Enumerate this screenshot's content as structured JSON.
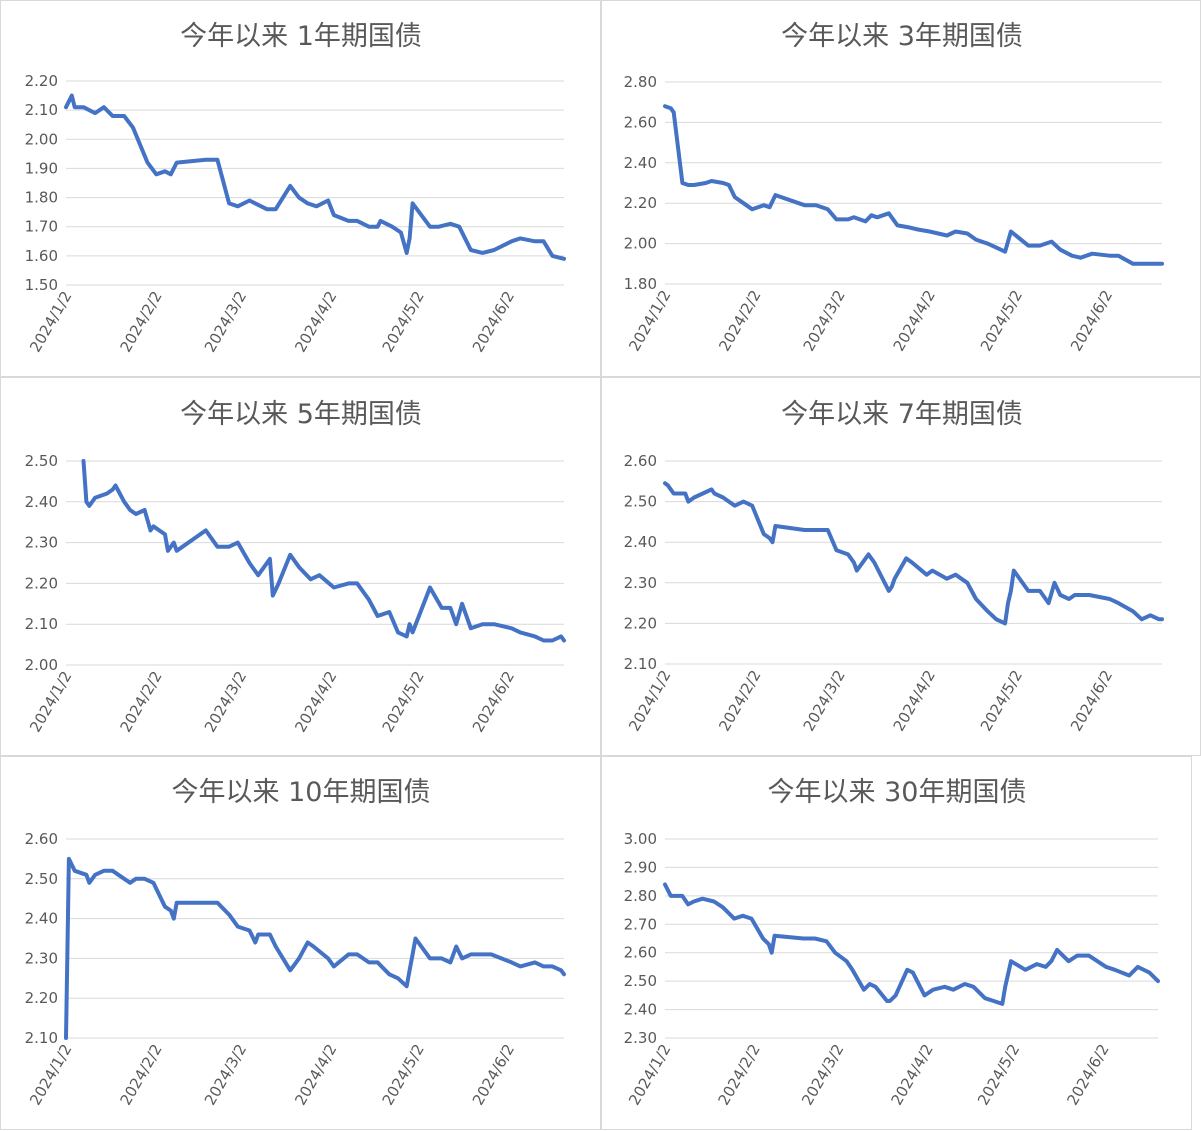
{
  "chart_data": [
    {
      "type": "line",
      "title": "今年以来 1年期国债",
      "x_tick_labels": [
        "2024/1/2",
        "2024/2/2",
        "2024/3/2",
        "2024/4/2",
        "2024/5/2",
        "2024/6/2"
      ],
      "ylim": [
        1.5,
        2.2
      ],
      "y_tick_labels": [
        "2.20",
        "2.10",
        "2.00",
        "1.90",
        "1.80",
        "1.70",
        "1.60",
        "1.50"
      ],
      "grid": true,
      "legend": "none",
      "x": [
        "2024/1/2",
        "2024/1/4",
        "2024/1/5",
        "2024/1/8",
        "2024/1/12",
        "2024/1/15",
        "2024/1/18",
        "2024/1/22",
        "2024/1/25",
        "2024/1/30",
        "2024/2/2",
        "2024/2/5",
        "2024/2/7",
        "2024/2/9",
        "2024/2/19",
        "2024/2/23",
        "2024/2/27",
        "2024/3/1",
        "2024/3/5",
        "2024/3/7",
        "2024/3/11",
        "2024/3/13",
        "2024/3/14",
        "2024/3/19",
        "2024/3/22",
        "2024/3/25",
        "2024/3/28",
        "2024/4/1",
        "2024/4/3",
        "2024/4/8",
        "2024/4/11",
        "2024/4/15",
        "2024/4/18",
        "2024/4/19",
        "2024/4/23",
        "2024/4/26",
        "2024/4/28",
        "2024/4/29",
        "2024/4/30",
        "2024/5/6",
        "2024/5/9",
        "2024/5/13",
        "2024/5/16",
        "2024/5/20",
        "2024/5/24",
        "2024/5/28",
        "2024/6/3",
        "2024/6/6",
        "2024/6/11",
        "2024/6/14",
        "2024/6/17",
        "2024/6/21"
      ],
      "values": [
        2.11,
        2.15,
        2.11,
        2.11,
        2.09,
        2.11,
        2.08,
        2.08,
        2.04,
        1.92,
        1.88,
        1.89,
        1.88,
        1.92,
        1.93,
        1.93,
        1.78,
        1.77,
        1.79,
        1.78,
        1.76,
        1.76,
        1.76,
        1.84,
        1.8,
        1.78,
        1.77,
        1.79,
        1.74,
        1.72,
        1.72,
        1.7,
        1.7,
        1.72,
        1.7,
        1.68,
        1.61,
        1.66,
        1.78,
        1.7,
        1.7,
        1.71,
        1.7,
        1.62,
        1.61,
        1.62,
        1.65,
        1.66,
        1.65,
        1.65,
        1.6,
        1.59
      ]
    },
    {
      "type": "line",
      "title": "今年以来 7年期国债",
      "x_tick_labels": [
        "2024/1/2",
        "2024/2/2",
        "2024/3/2",
        "2024/4/2",
        "2024/5/2",
        "2024/6/2"
      ],
      "ylim": [
        2.1,
        2.6
      ],
      "y_tick_labels": [
        "2.60",
        "2.50",
        "2.40",
        "2.30",
        "2.20",
        "2.10"
      ],
      "grid": true,
      "legend": "none",
      "x": [
        "2024/1/2",
        "2024/1/3",
        "2024/1/5",
        "2024/1/9",
        "2024/1/10",
        "2024/1/12",
        "2024/1/15",
        "2024/1/18",
        "2024/1/19",
        "2024/1/22",
        "2024/1/24",
        "2024/1/26",
        "2024/1/29",
        "2024/2/1",
        "2024/2/5",
        "2024/2/7",
        "2024/2/8",
        "2024/2/9",
        "2024/2/19",
        "2024/2/22",
        "2024/2/27",
        "2024/3/1",
        "2024/3/5",
        "2024/3/7",
        "2024/3/8",
        "2024/3/12",
        "2024/3/14",
        "2024/3/19",
        "2024/3/20",
        "2024/3/21",
        "2024/3/25",
        "2024/3/27",
        "2024/4/1",
        "2024/4/3",
        "2024/4/8",
        "2024/4/11",
        "2024/4/15",
        "2024/4/18",
        "2024/4/22",
        "2024/4/25",
        "2024/4/28",
        "2024/4/29",
        "2024/4/30",
        "2024/5/1",
        "2024/5/6",
        "2024/5/10",
        "2024/5/13",
        "2024/5/15",
        "2024/5/17",
        "2024/5/20",
        "2024/5/22",
        "2024/5/27",
        "2024/6/3",
        "2024/6/6",
        "2024/6/11",
        "2024/6/14",
        "2024/6/17",
        "2024/6/20",
        "2024/6/21"
      ],
      "values": [
        2.545,
        2.54,
        2.52,
        2.52,
        2.5,
        2.51,
        2.52,
        2.53,
        2.52,
        2.51,
        2.5,
        2.49,
        2.5,
        2.49,
        2.42,
        2.41,
        2.4,
        2.44,
        2.43,
        2.43,
        2.43,
        2.38,
        2.37,
        2.35,
        2.33,
        2.37,
        2.35,
        2.28,
        2.29,
        2.31,
        2.36,
        2.35,
        2.32,
        2.33,
        2.31,
        2.32,
        2.3,
        2.26,
        2.23,
        2.21,
        2.2,
        2.25,
        2.28,
        2.33,
        2.28,
        2.28,
        2.25,
        2.3,
        2.27,
        2.26,
        2.27,
        2.27,
        2.26,
        2.25,
        2.23,
        2.21,
        2.22,
        2.21,
        2.21
      ]
    },
    {
      "type": "line",
      "title": "今年以来 3年期国债",
      "x_tick_labels": [
        "2024/1/2",
        "2024/2/2",
        "2024/3/2",
        "2024/4/2",
        "2024/5/2",
        "2024/6/2"
      ],
      "ylim": [
        1.8,
        2.8
      ],
      "y_tick_labels": [
        "2.80",
        "2.60",
        "2.40",
        "2.20",
        "2.00",
        "1.80"
      ],
      "grid": true,
      "legend": "none",
      "x": [
        "2024/1/2",
        "2024/1/4",
        "2024/1/5",
        "2024/1/8",
        "2024/1/10",
        "2024/1/12",
        "2024/1/16",
        "2024/1/18",
        "2024/1/22",
        "2024/1/24",
        "2024/1/26",
        "2024/1/29",
        "2024/2/1",
        "2024/2/5",
        "2024/2/7",
        "2024/2/9",
        "2024/2/19",
        "2024/2/23",
        "2024/2/27",
        "2024/3/1",
        "2024/3/5",
        "2024/3/7",
        "2024/3/11",
        "2024/3/13",
        "2024/3/15",
        "2024/3/19",
        "2024/3/22",
        "2024/3/26",
        "2024/3/29",
        "2024/4/2",
        "2024/4/8",
        "2024/4/11",
        "2024/4/15",
        "2024/4/18",
        "2024/4/22",
        "2024/4/25",
        "2024/4/28",
        "2024/4/30",
        "2024/5/6",
        "2024/5/10",
        "2024/5/14",
        "2024/5/17",
        "2024/5/21",
        "2024/5/24",
        "2024/5/28",
        "2024/6/3",
        "2024/6/6",
        "2024/6/11",
        "2024/6/14",
        "2024/6/17",
        "2024/6/21"
      ],
      "values": [
        2.68,
        2.67,
        2.65,
        2.3,
        2.29,
        2.29,
        2.3,
        2.31,
        2.3,
        2.29,
        2.23,
        2.2,
        2.17,
        2.19,
        2.18,
        2.24,
        2.19,
        2.19,
        2.17,
        2.12,
        2.12,
        2.13,
        2.11,
        2.14,
        2.13,
        2.15,
        2.09,
        2.08,
        2.07,
        2.06,
        2.04,
        2.06,
        2.05,
        2.02,
        2.0,
        1.98,
        1.96,
        2.06,
        1.99,
        1.99,
        2.01,
        1.97,
        1.94,
        1.93,
        1.95,
        1.94,
        1.94,
        1.9,
        1.9,
        1.9,
        1.9
      ]
    },
    {
      "type": "line",
      "title": "今年以来 10年期国债",
      "x_tick_labels": [
        "2024/1/2",
        "2024/2/2",
        "2024/3/2",
        "2024/4/2",
        "2024/5/2",
        "2024/6/2"
      ],
      "ylim": [
        2.1,
        2.6
      ],
      "y_tick_labels": [
        "2.60",
        "2.50",
        "2.40",
        "2.30",
        "2.20",
        "2.10"
      ],
      "grid": true,
      "legend": "none",
      "x": [
        "2024/1/2",
        "2024/1/3",
        "2024/1/5",
        "2024/1/9",
        "2024/1/10",
        "2024/1/12",
        "2024/1/15",
        "2024/1/18",
        "2024/1/22",
        "2024/1/24",
        "2024/1/26",
        "2024/1/29",
        "2024/2/1",
        "2024/2/5",
        "2024/2/7",
        "2024/2/8",
        "2024/2/9",
        "2024/2/19",
        "2024/2/23",
        "2024/2/27",
        "2024/3/1",
        "2024/3/5",
        "2024/3/7",
        "2024/3/8",
        "2024/3/12",
        "2024/3/14",
        "2024/3/19",
        "2024/3/20",
        "2024/3/22",
        "2024/3/25",
        "2024/3/27",
        "2024/4/1",
        "2024/4/3",
        "2024/4/8",
        "2024/4/11",
        "2024/4/15",
        "2024/4/18",
        "2024/4/22",
        "2024/4/25",
        "2024/4/28",
        "2024/4/29",
        "2024/4/30",
        "2024/5/1",
        "2024/5/6",
        "2024/5/10",
        "2024/5/13",
        "2024/5/15",
        "2024/5/17",
        "2024/5/20",
        "2024/5/22",
        "2024/5/27",
        "2024/6/3",
        "2024/6/6",
        "2024/6/11",
        "2024/6/14",
        "2024/6/17",
        "2024/6/20",
        "2024/6/21"
      ],
      "values": [
        2.1,
        2.55,
        2.52,
        2.51,
        2.49,
        2.51,
        2.52,
        2.52,
        2.5,
        2.49,
        2.5,
        2.5,
        2.49,
        2.43,
        2.42,
        2.4,
        2.44,
        2.44,
        2.44,
        2.41,
        2.38,
        2.37,
        2.34,
        2.36,
        2.36,
        2.33,
        2.27,
        2.28,
        2.3,
        2.34,
        2.33,
        2.3,
        2.28,
        2.31,
        2.31,
        2.29,
        2.29,
        2.26,
        2.25,
        2.23,
        2.27,
        2.31,
        2.35,
        2.3,
        2.3,
        2.29,
        2.33,
        2.3,
        2.31,
        2.31,
        2.31,
        2.29,
        2.28,
        2.29,
        2.28,
        2.28,
        2.27,
        2.26
      ]
    },
    {
      "type": "line",
      "title": "今年以来 5年期国债",
      "x_tick_labels": [
        "2024/1/2",
        "2024/2/2",
        "2024/3/2",
        "2024/4/2",
        "2024/5/2",
        "2024/6/2"
      ],
      "ylim": [
        2.0,
        2.5
      ],
      "y_tick_labels": [
        "2.50",
        "2.40",
        "2.30",
        "2.20",
        "2.10",
        "2.00"
      ],
      "grid": true,
      "legend": "none",
      "x": [
        "2024/1/8",
        "2024/1/9",
        "2024/1/10",
        "2024/1/12",
        "2024/1/16",
        "2024/1/18",
        "2024/1/19",
        "2024/1/22",
        "2024/1/24",
        "2024/1/26",
        "2024/1/29",
        "2024/1/31",
        "2024/2/1",
        "2024/2/5",
        "2024/2/6",
        "2024/2/8",
        "2024/2/9",
        "2024/2/19",
        "2024/2/23",
        "2024/2/27",
        "2024/3/1",
        "2024/3/5",
        "2024/3/6",
        "2024/3/8",
        "2024/3/12",
        "2024/3/13",
        "2024/3/15",
        "2024/3/19",
        "2024/3/22",
        "2024/3/26",
        "2024/3/29",
        "2024/4/3",
        "2024/4/8",
        "2024/4/11",
        "2024/4/15",
        "2024/4/18",
        "2024/4/22",
        "2024/4/25",
        "2024/4/28",
        "2024/4/29",
        "2024/4/30",
        "2024/5/6",
        "2024/5/10",
        "2024/5/13",
        "2024/5/15",
        "2024/5/17",
        "2024/5/20",
        "2024/5/24",
        "2024/5/28",
        "2024/6/3",
        "2024/6/6",
        "2024/6/11",
        "2024/6/14",
        "2024/6/17",
        "2024/6/20",
        "2024/6/21"
      ],
      "values": [
        2.5,
        2.4,
        2.39,
        2.41,
        2.42,
        2.43,
        2.44,
        2.4,
        2.38,
        2.37,
        2.38,
        2.33,
        2.34,
        2.32,
        2.28,
        2.3,
        2.28,
        2.33,
        2.29,
        2.29,
        2.3,
        2.25,
        2.24,
        2.22,
        2.26,
        2.17,
        2.2,
        2.27,
        2.24,
        2.21,
        2.22,
        2.19,
        2.2,
        2.2,
        2.16,
        2.12,
        2.13,
        2.08,
        2.07,
        2.1,
        2.08,
        2.19,
        2.14,
        2.14,
        2.1,
        2.15,
        2.09,
        2.1,
        2.1,
        2.09,
        2.08,
        2.07,
        2.06,
        2.06,
        2.07,
        2.06
      ]
    },
    {
      "type": "line",
      "title": "今年以来 30年期国债",
      "x_tick_labels": [
        "2024/1/2",
        "2024/2/2",
        "2024/3/2",
        "2024/4/2",
        "2024/5/2",
        "2024/6/2"
      ],
      "ylim": [
        2.3,
        3.0
      ],
      "y_tick_labels": [
        "3.00",
        "2.90",
        "2.80",
        "2.70",
        "2.60",
        "2.50",
        "2.40",
        "2.30"
      ],
      "grid": true,
      "legend": "none",
      "x": [
        "2024/1/2",
        "2024/1/4",
        "2024/1/8",
        "2024/1/10",
        "2024/1/12",
        "2024/1/15",
        "2024/1/19",
        "2024/1/22",
        "2024/1/26",
        "2024/1/29",
        "2024/2/1",
        "2024/2/5",
        "2024/2/7",
        "2024/2/8",
        "2024/2/9",
        "2024/2/19",
        "2024/2/23",
        "2024/2/27",
        "2024/3/1",
        "2024/3/5",
        "2024/3/7",
        "2024/3/11",
        "2024/3/13",
        "2024/3/15",
        "2024/3/19",
        "2024/3/20",
        "2024/3/22",
        "2024/3/26",
        "2024/3/28",
        "2024/4/1",
        "2024/4/4",
        "2024/4/8",
        "2024/4/11",
        "2024/4/15",
        "2024/4/18",
        "2024/4/22",
        "2024/4/25",
        "2024/4/28",
        "2024/4/29",
        "2024/5/1",
        "2024/5/6",
        "2024/5/10",
        "2024/5/13",
        "2024/5/15",
        "2024/5/17",
        "2024/5/21",
        "2024/5/24",
        "2024/5/28",
        "2024/6/3",
        "2024/6/6",
        "2024/6/11",
        "2024/6/14",
        "2024/6/18",
        "2024/6/21"
      ],
      "values": [
        2.84,
        2.8,
        2.8,
        2.77,
        2.78,
        2.79,
        2.78,
        2.76,
        2.72,
        2.73,
        2.72,
        2.65,
        2.63,
        2.6,
        2.66,
        2.65,
        2.65,
        2.64,
        2.6,
        2.57,
        2.54,
        2.47,
        2.49,
        2.48,
        2.43,
        2.43,
        2.45,
        2.54,
        2.53,
        2.45,
        2.47,
        2.48,
        2.47,
        2.49,
        2.48,
        2.44,
        2.43,
        2.42,
        2.48,
        2.57,
        2.54,
        2.56,
        2.55,
        2.57,
        2.61,
        2.57,
        2.59,
        2.59,
        2.55,
        2.54,
        2.52,
        2.55,
        2.53,
        2.5
      ]
    }
  ]
}
